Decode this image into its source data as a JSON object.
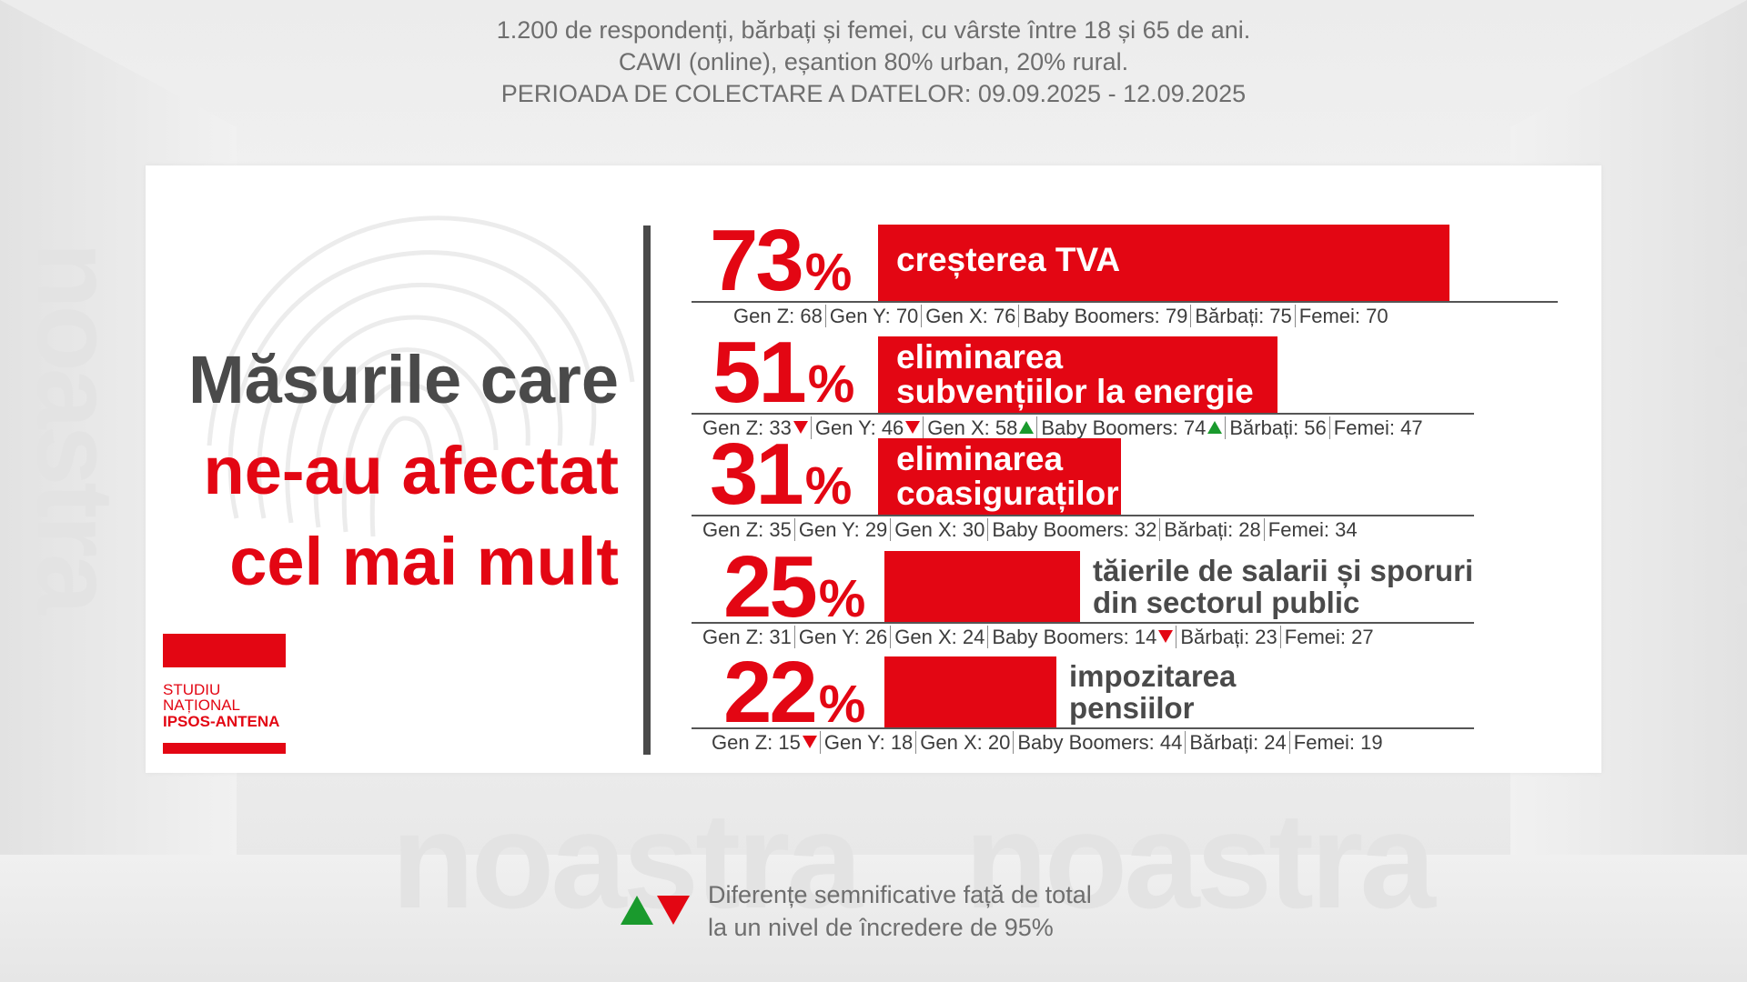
{
  "survey": {
    "line1": "1.200 de respondenți, bărbați și femei, cu vârste între 18 și 65 de ani.",
    "line2": "CAWI (online), eșantion 80% urban, 20% rural.",
    "line3": "PERIOADA DE COLECTARE A DATELOR: 09.09.2025 - 12.09.2025"
  },
  "title": {
    "line1": "Măsurile care",
    "line2": "ne-au afectat",
    "line3": "cel mai mult"
  },
  "logo": {
    "line1": "STUDIU",
    "line2": "NAȚIONAL",
    "line3": "IPSOS-ANTENA"
  },
  "watermark": "noastra",
  "colors": {
    "accent": "#e30613",
    "dark": "#4a4a4a",
    "up": "#1a9a2d",
    "down": "#e30613"
  },
  "legend": {
    "line1": "Diferențe semnificative față de total",
    "line2": "la un nivel de încredere de 95%"
  },
  "chart_data": {
    "type": "bar",
    "orientation": "horizontal",
    "unit": "%",
    "value_max": 100,
    "categories": [
      "creșterea TVA",
      "eliminarea subvențiilor la energie",
      "eliminarea coasiguraților",
      "tăierile de salarii și sporuri din sectorul public",
      "impozitarea pensiilor"
    ],
    "values": [
      73,
      51,
      31,
      25,
      22
    ],
    "items": [
      {
        "value": 73,
        "pct_text": "73",
        "label_lines": [
          "creșterea TVA"
        ],
        "label_position": "inside",
        "breakdown": [
          {
            "label": "Gen Z: 68",
            "trend": ""
          },
          {
            "label": "Gen Y: 70",
            "trend": ""
          },
          {
            "label": "Gen X: 76",
            "trend": ""
          },
          {
            "label": "Baby Boomers: 79",
            "trend": ""
          },
          {
            "label": "Bărbați: 75",
            "trend": ""
          },
          {
            "label": "Femei: 70",
            "trend": ""
          }
        ]
      },
      {
        "value": 51,
        "pct_text": "51",
        "label_lines": [
          "eliminarea",
          "subvențiilor la energie"
        ],
        "label_position": "inside",
        "breakdown": [
          {
            "label": "Gen Z: 33",
            "trend": "down"
          },
          {
            "label": "Gen Y: 46",
            "trend": "down"
          },
          {
            "label": "Gen X: 58",
            "trend": "up"
          },
          {
            "label": "Baby Boomers: 74",
            "trend": "up"
          },
          {
            "label": "Bărbați: 56",
            "trend": ""
          },
          {
            "label": "Femei: 47",
            "trend": ""
          }
        ]
      },
      {
        "value": 31,
        "pct_text": "31",
        "label_lines": [
          "eliminarea",
          "coasiguraților"
        ],
        "label_position": "inside",
        "breakdown": [
          {
            "label": "Gen Z: 35",
            "trend": ""
          },
          {
            "label": "Gen Y: 29",
            "trend": ""
          },
          {
            "label": "Gen X: 30",
            "trend": ""
          },
          {
            "label": "Baby Boomers: 32",
            "trend": ""
          },
          {
            "label": "Bărbați: 28",
            "trend": ""
          },
          {
            "label": "Femei: 34",
            "trend": ""
          }
        ]
      },
      {
        "value": 25,
        "pct_text": "25",
        "label_lines": [
          "tăierile de salarii și sporuri",
          "din sectorul public"
        ],
        "label_position": "outside",
        "breakdown": [
          {
            "label": "Gen Z: 31",
            "trend": ""
          },
          {
            "label": "Gen Y: 26",
            "trend": ""
          },
          {
            "label": "Gen X: 24",
            "trend": ""
          },
          {
            "label": "Baby Boomers: 14",
            "trend": "down"
          },
          {
            "label": "Bărbați: 23",
            "trend": ""
          },
          {
            "label": "Femei: 27",
            "trend": ""
          }
        ]
      },
      {
        "value": 22,
        "pct_text": "22",
        "label_lines": [
          "impozitarea",
          "pensiilor"
        ],
        "label_position": "outside",
        "breakdown": [
          {
            "label": "Gen Z: 15",
            "trend": "down"
          },
          {
            "label": "Gen Y: 18",
            "trend": ""
          },
          {
            "label": "Gen X: 20",
            "trend": ""
          },
          {
            "label": "Baby Boomers: 44",
            "trend": ""
          },
          {
            "label": "Bărbați: 24",
            "trend": ""
          },
          {
            "label": "Femei: 19",
            "trend": ""
          }
        ]
      }
    ]
  }
}
